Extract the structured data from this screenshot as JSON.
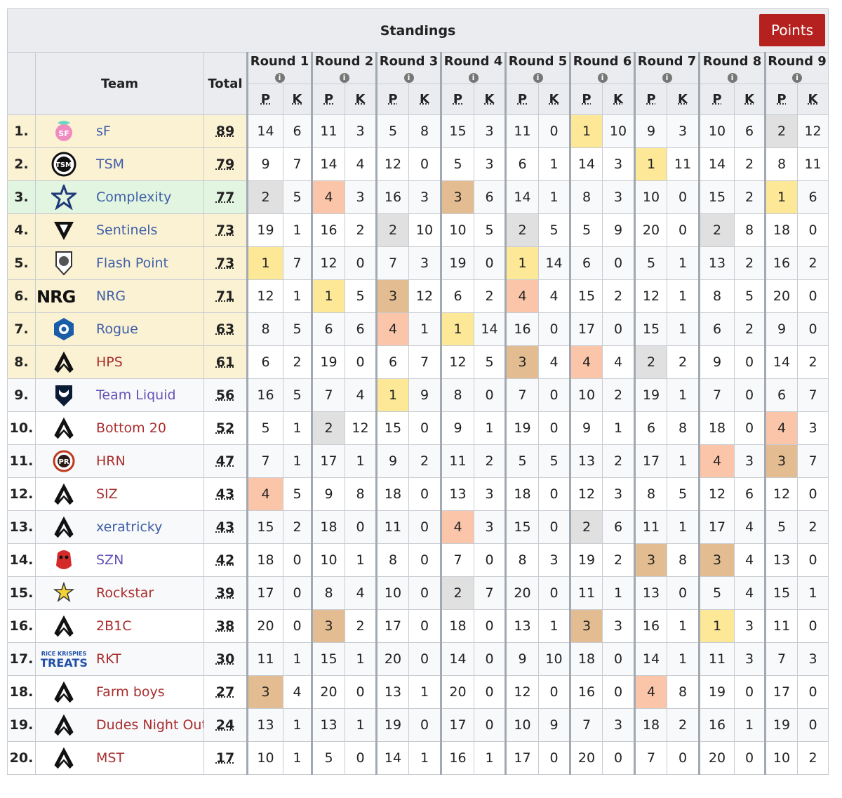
{
  "title": "Standings",
  "points_button": "Points",
  "headers": {
    "team": "Team",
    "total": "Total",
    "p": "P",
    "k": "K",
    "info": "i"
  },
  "rounds": [
    "Round 1",
    "Round 2",
    "Round 3",
    "Round 4",
    "Round 5",
    "Round 6",
    "Round 7",
    "Round 8",
    "Round 9"
  ],
  "colors": {
    "gold": "#fbf2d3",
    "green": "#e2f5e0",
    "place1": "#fce897",
    "place2": "#e0e0e0",
    "place3": "#e3bd91",
    "place4": "#fbc5aa",
    "button": "#b5211f"
  },
  "teams": [
    {
      "rank": "1.",
      "name": "sF",
      "logo": "sf-logo",
      "link": "blue",
      "qual": "gold",
      "total": "89",
      "cells": [
        14,
        6,
        11,
        3,
        5,
        8,
        15,
        3,
        11,
        0,
        1,
        10,
        9,
        3,
        10,
        6,
        2,
        12
      ]
    },
    {
      "rank": "2.",
      "name": "TSM",
      "logo": "tsm-logo",
      "link": "blue",
      "qual": "gold",
      "total": "79",
      "cells": [
        9,
        7,
        14,
        4,
        12,
        0,
        5,
        3,
        6,
        1,
        14,
        3,
        1,
        11,
        14,
        2,
        8,
        11
      ]
    },
    {
      "rank": "3.",
      "name": "Complexity",
      "logo": "complexity-star-logo",
      "link": "blue",
      "qual": "green",
      "total": "77",
      "cells": [
        2,
        5,
        4,
        3,
        16,
        3,
        3,
        6,
        14,
        1,
        8,
        3,
        10,
        0,
        15,
        2,
        1,
        6
      ]
    },
    {
      "rank": "4.",
      "name": "Sentinels",
      "logo": "sentinels-logo",
      "link": "blue",
      "qual": "gold",
      "total": "73",
      "cells": [
        19,
        1,
        16,
        2,
        2,
        10,
        10,
        5,
        2,
        5,
        5,
        9,
        20,
        0,
        2,
        8,
        18,
        0
      ]
    },
    {
      "rank": "5.",
      "name": "Flash Point",
      "logo": "flash-point-logo",
      "link": "blue",
      "qual": "gold",
      "total": "73",
      "cells": [
        1,
        7,
        12,
        0,
        7,
        3,
        19,
        0,
        1,
        14,
        6,
        0,
        5,
        1,
        13,
        2,
        16,
        2
      ]
    },
    {
      "rank": "6.",
      "name": "NRG",
      "logo": "nrg-logo",
      "link": "blue",
      "qual": "gold",
      "total": "71",
      "cells": [
        12,
        1,
        1,
        5,
        3,
        12,
        6,
        2,
        4,
        4,
        15,
        2,
        12,
        1,
        8,
        5,
        20,
        0
      ]
    },
    {
      "rank": "7.",
      "name": "Rogue",
      "logo": "rogue-logo",
      "link": "blue",
      "qual": "gold",
      "total": "63",
      "cells": [
        8,
        5,
        6,
        6,
        4,
        1,
        1,
        14,
        16,
        0,
        17,
        0,
        15,
        1,
        6,
        2,
        9,
        0
      ]
    },
    {
      "rank": "8.",
      "name": "HPS",
      "logo": "apex-logo",
      "link": "red",
      "qual": "gold",
      "total": "61",
      "cells": [
        6,
        2,
        19,
        0,
        6,
        7,
        12,
        5,
        3,
        4,
        4,
        4,
        2,
        2,
        9,
        0,
        14,
        2
      ]
    },
    {
      "rank": "9.",
      "name": "Team Liquid",
      "logo": "team-liquid-logo",
      "link": "purple",
      "qual": "",
      "total": "56",
      "cells": [
        16,
        5,
        7,
        4,
        1,
        9,
        8,
        0,
        7,
        0,
        10,
        2,
        19,
        1,
        7,
        0,
        6,
        7
      ]
    },
    {
      "rank": "10.",
      "name": "Bottom 20",
      "logo": "apex-logo",
      "link": "red",
      "qual": "",
      "total": "52",
      "cells": [
        5,
        1,
        2,
        12,
        15,
        0,
        9,
        1,
        19,
        0,
        9,
        1,
        6,
        8,
        18,
        0,
        4,
        3
      ]
    },
    {
      "rank": "11.",
      "name": "HRN",
      "logo": "hrn-logo",
      "link": "red",
      "qual": "",
      "total": "47",
      "cells": [
        7,
        1,
        17,
        1,
        9,
        2,
        11,
        2,
        5,
        5,
        13,
        2,
        17,
        1,
        4,
        3,
        3,
        7
      ]
    },
    {
      "rank": "12.",
      "name": "SIZ",
      "logo": "apex-logo",
      "link": "red",
      "qual": "",
      "total": "43",
      "cells": [
        4,
        5,
        9,
        8,
        18,
        0,
        13,
        3,
        18,
        0,
        12,
        3,
        8,
        5,
        12,
        6,
        12,
        0
      ]
    },
    {
      "rank": "13.",
      "name": "xeratricky",
      "logo": "apex-logo",
      "link": "blue",
      "qual": "",
      "total": "43",
      "cells": [
        15,
        2,
        18,
        0,
        11,
        0,
        4,
        3,
        15,
        0,
        2,
        6,
        11,
        1,
        17,
        4,
        5,
        2
      ]
    },
    {
      "rank": "14.",
      "name": "SZN",
      "logo": "szn-logo",
      "link": "purple",
      "qual": "",
      "total": "42",
      "cells": [
        18,
        0,
        10,
        1,
        8,
        0,
        7,
        0,
        8,
        3,
        19,
        2,
        3,
        8,
        3,
        4,
        13,
        0
      ]
    },
    {
      "rank": "15.",
      "name": "Rockstar",
      "logo": "rockstar-logo",
      "link": "red",
      "qual": "",
      "total": "39",
      "cells": [
        17,
        0,
        8,
        4,
        10,
        0,
        2,
        7,
        20,
        0,
        11,
        1,
        13,
        0,
        5,
        4,
        15,
        1
      ]
    },
    {
      "rank": "16.",
      "name": "2B1C",
      "logo": "apex-logo",
      "link": "red",
      "qual": "",
      "total": "38",
      "cells": [
        20,
        0,
        3,
        2,
        17,
        0,
        18,
        0,
        13,
        1,
        3,
        3,
        16,
        1,
        1,
        3,
        11,
        0
      ]
    },
    {
      "rank": "17.",
      "name": "RKT",
      "logo": "rice-krispies-treats-logo",
      "link": "red",
      "qual": "",
      "total": "30",
      "cells": [
        11,
        1,
        15,
        1,
        20,
        0,
        14,
        0,
        9,
        10,
        18,
        0,
        14,
        1,
        11,
        3,
        7,
        3
      ]
    },
    {
      "rank": "18.",
      "name": "Farm boys",
      "logo": "apex-logo",
      "link": "red",
      "qual": "",
      "total": "27",
      "cells": [
        3,
        4,
        20,
        0,
        13,
        1,
        20,
        0,
        12,
        0,
        16,
        0,
        4,
        8,
        19,
        0,
        17,
        0
      ]
    },
    {
      "rank": "19.",
      "name": "Dudes Night Out",
      "logo": "apex-logo",
      "link": "red",
      "qual": "",
      "total": "24",
      "cells": [
        13,
        1,
        13,
        1,
        19,
        0,
        17,
        0,
        10,
        9,
        7,
        3,
        18,
        2,
        16,
        1,
        19,
        0
      ]
    },
    {
      "rank": "20.",
      "name": "MST",
      "logo": "apex-logo",
      "link": "red",
      "qual": "",
      "total": "17",
      "cells": [
        10,
        1,
        5,
        0,
        14,
        1,
        16,
        1,
        17,
        0,
        20,
        0,
        7,
        0,
        20,
        0,
        10,
        2
      ]
    }
  ]
}
